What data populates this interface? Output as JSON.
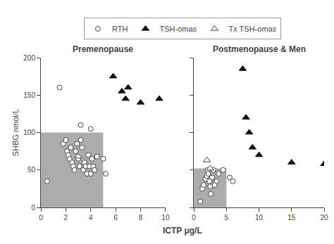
{
  "chart_data": {
    "type": "scatter",
    "xlabel": "ICTP μg/L",
    "legend": "top",
    "grid": false,
    "panels": [
      {
        "title": "Premenopause",
        "ylabel": "SHBG nmol/L",
        "xlim": [
          0,
          10
        ],
        "ylim": [
          0,
          200
        ],
        "xticks": [
          0,
          2,
          4,
          6,
          8,
          10
        ],
        "yticks": [
          0,
          50,
          100,
          150,
          200
        ],
        "shaded_region": {
          "x": [
            0,
            5
          ],
          "y": [
            0,
            100
          ],
          "color": "#808080"
        },
        "series": [
          {
            "name": "RTH",
            "color": "#444444",
            "marker": "circle-open",
            "x": [
              0.5,
              1.5,
              1.8,
              2.0,
              2.1,
              2.2,
              2.3,
              2.4,
              2.5,
              2.6,
              2.7,
              2.8,
              2.9,
              3.0,
              3.1,
              3.2,
              3.3,
              3.4,
              3.5,
              3.6,
              3.7,
              3.8,
              3.9,
              4.0,
              4.1,
              4.2,
              4.3,
              4.5,
              5.0,
              5.2,
              3.2,
              4.0
            ],
            "y": [
              35,
              160,
              85,
              90,
              75,
              70,
              65,
              80,
              60,
              55,
              50,
              75,
              85,
              65,
              55,
              90,
              80,
              50,
              60,
              55,
              45,
              70,
              55,
              45,
              65,
              55,
              50,
              68,
              65,
              45,
              110,
              105
            ]
          },
          {
            "name": "TSH-omas",
            "color": "#111111",
            "marker": "triangle-up",
            "x": [
              5.8,
              6.5,
              6.8,
              7.0,
              8.0,
              9.5
            ],
            "y": [
              175,
              155,
              145,
              160,
              140,
              145
            ]
          },
          {
            "name": "Tx TSH-omas",
            "color": "#444444",
            "marker": "triangle-up-open",
            "x": [
              3.0
            ],
            "y": [
              68
            ]
          }
        ]
      },
      {
        "title": "Postmenopause & Men",
        "tick_labels": "x",
        "xlim": [
          0,
          20
        ],
        "ylim": [
          0,
          200
        ],
        "xticks": [
          0,
          5,
          10,
          15,
          20
        ],
        "yticks": [
          0,
          50,
          100,
          150,
          200
        ],
        "shaded_region": {
          "x": [
            0,
            5
          ],
          "y": [
            0,
            52
          ],
          "color": "#808080"
        },
        "series": [
          {
            "name": "RTH",
            "color": "#444444",
            "marker": "circle-open",
            "x": [
              1.0,
              1.3,
              1.5,
              1.8,
              2.0,
              2.1,
              2.2,
              2.4,
              2.5,
              2.6,
              2.8,
              3.0,
              3.2,
              3.5,
              3.8,
              4.5,
              5.5,
              6.0
            ],
            "y": [
              8,
              25,
              30,
              38,
              42,
              50,
              45,
              35,
              28,
              18,
              40,
              50,
              30,
              35,
              45,
              50,
              40,
              35
            ]
          },
          {
            "name": "TSH-omas",
            "color": "#111111",
            "marker": "triangle-up",
            "x": [
              7.5,
              8.0,
              8.5,
              9.0,
              10.0,
              15.0,
              20.0
            ],
            "y": [
              185,
              120,
              100,
              80,
              70,
              60,
              58
            ]
          },
          {
            "name": "Tx TSH-omas",
            "color": "#444444",
            "marker": "triangle-up-open",
            "x": [
              2.0,
              2.5
            ],
            "y": [
              63,
              52
            ]
          }
        ]
      }
    ]
  }
}
